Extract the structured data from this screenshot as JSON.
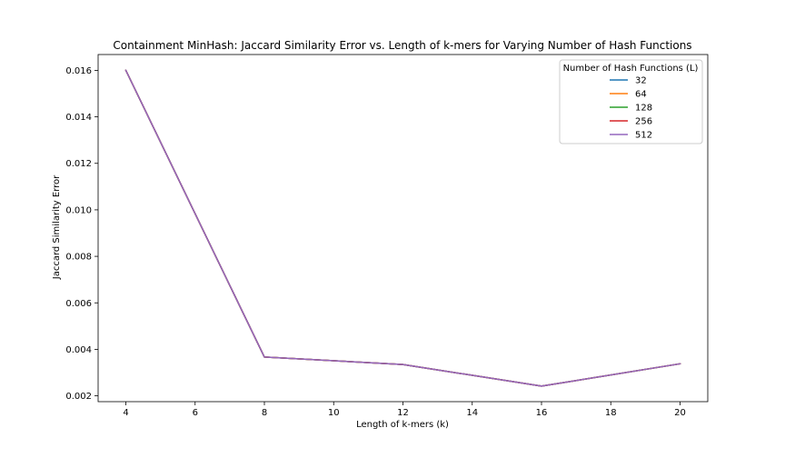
{
  "chart_data": {
    "type": "line",
    "title": "Containment MinHash: Jaccard Similarity Error vs. Length of k-mers for Varying Number of Hash Functions",
    "xlabel": "Length of k-mers (k)",
    "ylabel": "Jaccard Similarity Error",
    "x": [
      4,
      8,
      12,
      16,
      20
    ],
    "xlim": [
      3.2,
      20.8
    ],
    "ylim": [
      0.00175,
      0.01668
    ],
    "xticks": [
      4,
      6,
      8,
      10,
      12,
      14,
      16,
      18,
      20
    ],
    "yticks": [
      0.002,
      0.004,
      0.006,
      0.008,
      0.01,
      0.012,
      0.014,
      0.016
    ],
    "ytick_labels": [
      "0.002",
      "0.004",
      "0.006",
      "0.008",
      "0.010",
      "0.012",
      "0.014",
      "0.016"
    ],
    "grid": false,
    "legend": {
      "title": "Number of Hash Functions (L)",
      "placement": "top-right"
    },
    "series": [
      {
        "name": "32",
        "color": "#1f77b4",
        "values": [
          0.016,
          0.00367,
          0.00335,
          0.00242,
          0.00338
        ]
      },
      {
        "name": "64",
        "color": "#ff7f0e",
        "values": [
          0.016,
          0.00367,
          0.00335,
          0.00242,
          0.00338
        ]
      },
      {
        "name": "128",
        "color": "#2ca02c",
        "values": [
          0.016,
          0.00367,
          0.00335,
          0.00242,
          0.00338
        ]
      },
      {
        "name": "256",
        "color": "#d62728",
        "values": [
          0.016,
          0.00367,
          0.00335,
          0.00242,
          0.00338
        ]
      },
      {
        "name": "512",
        "color": "#9467bd",
        "values": [
          0.016,
          0.00367,
          0.00335,
          0.00242,
          0.00338
        ]
      }
    ]
  }
}
